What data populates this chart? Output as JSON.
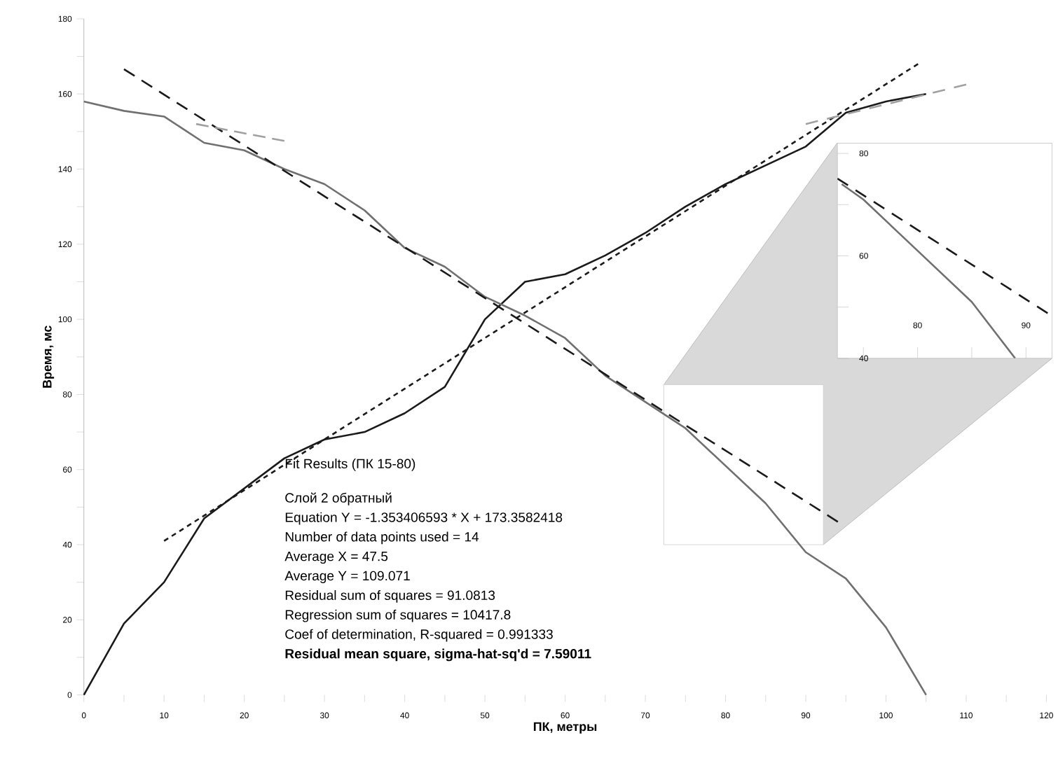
{
  "chart_data": [
    {
      "type": "line",
      "xlabel": "ПК, метры",
      "ylabel": "Время, мс",
      "xlim": [
        0,
        120
      ],
      "ylim": [
        0,
        180
      ],
      "xticks": [
        0,
        {
          "value": 5,
          "label": null
        },
        10,
        {
          "value": 15,
          "label": null
        },
        20,
        {
          "value": 25,
          "label": null
        },
        30,
        {
          "value": 35,
          "label": null
        },
        40,
        {
          "value": 45,
          "label": null
        },
        50,
        {
          "value": 55,
          "label": null
        },
        60,
        {
          "value": 65,
          "label": null
        },
        70,
        {
          "value": 75,
          "label": null
        },
        80,
        {
          "value": 85,
          "label": null
        },
        90,
        {
          "value": 95,
          "label": null
        },
        100,
        {
          "value": 105,
          "label": null
        },
        110,
        {
          "value": 115,
          "label": null
        },
        120
      ],
      "yticks": [
        0,
        {
          "value": 10,
          "label": null
        },
        20,
        {
          "value": 30,
          "label": null
        },
        40,
        {
          "value": 50,
          "label": null
        },
        60,
        {
          "value": 70,
          "label": null
        },
        80,
        {
          "value": 90,
          "label": null
        },
        100,
        {
          "value": 110,
          "label": null
        },
        120,
        {
          "value": 130,
          "label": null
        },
        140,
        {
          "value": 150,
          "label": null
        },
        160,
        {
          "value": 170,
          "label": null
        },
        180
      ],
      "grid": false,
      "series": [
        {
          "color": "#1a1a1a",
          "line_style": "solid",
          "x": [
            0,
            5,
            10,
            15,
            20,
            25,
            30,
            35,
            40,
            45,
            50,
            55,
            60,
            65,
            70,
            75,
            80,
            85,
            90,
            95,
            100,
            105
          ],
          "values": [
            0,
            19,
            30,
            47,
            55,
            63,
            68,
            70,
            75,
            82,
            100,
            110,
            112,
            117,
            123,
            130,
            136,
            141,
            146,
            155,
            158,
            160
          ]
        },
        {
          "color": "#707070",
          "line_style": "solid",
          "x": [
            0,
            5,
            10,
            15,
            20,
            25,
            30,
            35,
            40,
            45,
            50,
            55,
            60,
            65,
            70,
            75,
            80,
            85,
            90,
            95,
            100,
            105
          ],
          "values": [
            158,
            155.5,
            154,
            147,
            145,
            140,
            136,
            129,
            119,
            114,
            106,
            101,
            95,
            85,
            78,
            71,
            61,
            51,
            38,
            31,
            18,
            0
          ]
        },
        {
          "color": "#1a1a1a",
          "line_style": "dashed",
          "x": [
            5,
            94
          ],
          "values": [
            166.6,
            46.1
          ]
        },
        {
          "color": "#1a1a1a",
          "line_style": "dotted",
          "x": [
            10,
            104
          ],
          "values": [
            41,
            168
          ]
        },
        {
          "color": "#a0a0a0",
          "line_style": "dashed",
          "x": [
            14,
            25
          ],
          "values": [
            152,
            147.5
          ]
        },
        {
          "color": "#a0a0a0",
          "line_style": "dashed",
          "x": [
            90,
            110
          ],
          "values": [
            152,
            162.5
          ]
        }
      ],
      "annotations": [
        "Fit Results (ПК 15-80)",
        "Слой 2 обратный",
        "Equation Y = -1.353406593 * X + 173.3582418",
        "Number of data points used = 14",
        "Average X = 47.5",
        "Average Y = 109.071",
        "Residual sum of squares = 91.0813",
        "Regression sum of squares = 10417.8",
        "Coef of determination, R-squared = 0.991333",
        "**Residual mean square, sigma-hat-sq'd = 7.59011**"
      ]
    },
    {
      "type": "line",
      "xlim": [
        72.6,
        92.4
      ],
      "ylim": [
        40,
        82
      ],
      "xticks": [
        {
          "value": 75,
          "label": null
        },
        80,
        {
          "value": 85,
          "label": null
        },
        90
      ],
      "yticks": [
        40,
        {
          "value": 50,
          "label": null
        },
        60,
        {
          "value": 70,
          "label": null
        },
        80
      ],
      "grid": false,
      "series": [
        {
          "color": "#707070",
          "line_style": "solid",
          "x": [
            73,
            75,
            80,
            85,
            89
          ],
          "values": [
            74,
            71,
            61,
            51,
            40
          ]
        },
        {
          "color": "#1a1a1a",
          "line_style": "dashed",
          "x": [
            72.6,
            92
          ],
          "values": [
            75.1,
            48.8
          ]
        }
      ]
    }
  ]
}
